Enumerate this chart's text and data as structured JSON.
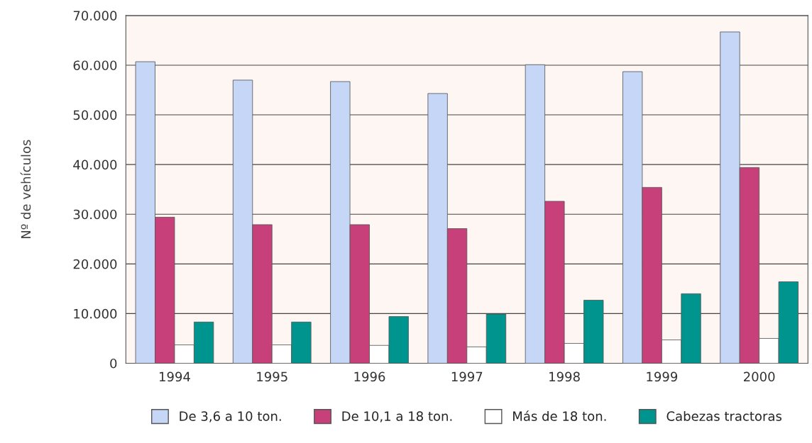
{
  "chart_data": {
    "type": "bar",
    "ylabel": "Nº de vehículos",
    "categories": [
      "1994",
      "1995",
      "1996",
      "1997",
      "1998",
      "1999",
      "2000"
    ],
    "series": [
      {
        "name": "De 3,6 a 10 ton.",
        "color": "#c5d6f7",
        "values": [
          60700,
          57000,
          56700,
          54300,
          60100,
          58700,
          66700
        ]
      },
      {
        "name": "De 10,1 a 18 ton.",
        "color": "#c8407a",
        "values": [
          29400,
          27900,
          27900,
          27100,
          32600,
          35400,
          39400
        ]
      },
      {
        "name": "Más de 18 ton.",
        "color": "#ffffff",
        "values": [
          3700,
          3700,
          3600,
          3300,
          4000,
          4700,
          5000
        ]
      },
      {
        "name": "Cabezas tractoras",
        "color": "#00948f",
        "values": [
          8300,
          8300,
          9400,
          9900,
          12700,
          14000,
          16400
        ]
      }
    ],
    "ylim": [
      0,
      70000
    ],
    "yticks": [
      0,
      {
        "value": 10000,
        "label": "10.000"
      },
      {
        "value": 20000,
        "label": "20.000"
      },
      {
        "value": 30000,
        "label": "30.000"
      },
      {
        "value": 40000,
        "label": "40.000"
      },
      {
        "value": 50000,
        "label": "50.000"
      },
      {
        "value": 60000,
        "label": "60.000"
      },
      {
        "value": 70000,
        "label": "70.000"
      }
    ],
    "grid": "y",
    "legend": "bottom"
  }
}
